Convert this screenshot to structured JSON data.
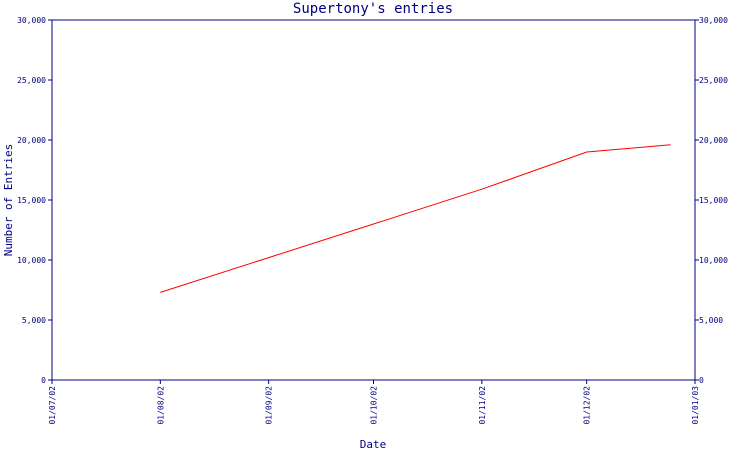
{
  "chart_data": {
    "type": "line",
    "title": "Supertony's entries",
    "xlabel": "Date",
    "ylabel": "Number of Entries",
    "x_tick_labels": [
      "01/07/02",
      "01/08/02",
      "01/09/02",
      "01/10/02",
      "01/11/02",
      "01/12/02",
      "01/01/03"
    ],
    "y_tick_labels": [
      "0",
      "5,000",
      "10,000",
      "15,000",
      "20,000",
      "25,000",
      "30,000"
    ],
    "ylim": [
      0,
      30000
    ],
    "xlim": [
      "2002-07-01",
      "2003-01-01"
    ],
    "grid": false,
    "series": [
      {
        "color": "#ff0000",
        "points": [
          {
            "x": "2002-08-01",
            "y": 7300
          },
          {
            "x": "2002-09-01",
            "y": 10200
          },
          {
            "x": "2002-10-01",
            "y": 13000
          },
          {
            "x": "2002-11-01",
            "y": 15900
          },
          {
            "x": "2002-12-01",
            "y": 19000
          },
          {
            "x": "2002-12-25",
            "y": 19600
          }
        ]
      }
    ],
    "colors": {
      "axis": "#000080",
      "text": "#000080",
      "line": "#ff0000"
    }
  }
}
